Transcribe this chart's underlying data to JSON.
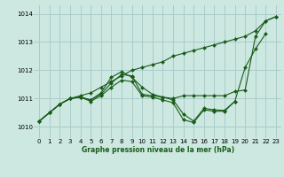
{
  "background_color": "#cce8e0",
  "grid_color": "#aacccc",
  "line_color": "#1a5c1a",
  "marker_color": "#1a5c1a",
  "title": "Graphe pression niveau de la mer (hPa)",
  "xlim": [
    -0.5,
    23.5
  ],
  "ylim": [
    1009.6,
    1014.3
  ],
  "yticks": [
    1010,
    1011,
    1012,
    1013,
    1014
  ],
  "xticks": [
    0,
    1,
    2,
    3,
    4,
    5,
    6,
    7,
    8,
    9,
    10,
    11,
    12,
    13,
    14,
    15,
    16,
    17,
    18,
    19,
    20,
    21,
    22,
    23
  ],
  "series": [
    [
      1010.2,
      1010.5,
      1010.8,
      1011.0,
      1011.1,
      1011.2,
      1011.4,
      1011.6,
      1011.8,
      1012.0,
      1012.1,
      1012.2,
      1012.3,
      1012.5,
      1012.6,
      1012.7,
      1012.8,
      1012.9,
      1013.0,
      1013.1,
      1013.2,
      1013.4,
      1013.75,
      1013.9
    ],
    [
      1010.2,
      1010.5,
      1010.8,
      1011.0,
      1011.05,
      1010.95,
      1011.2,
      1011.75,
      1011.95,
      1011.75,
      1011.4,
      1011.15,
      1011.05,
      1011.0,
      1011.1,
      1011.1,
      1011.1,
      1011.1,
      1011.1,
      1011.25,
      1011.3,
      1013.2,
      1013.75,
      1013.9
    ],
    [
      1010.2,
      1010.5,
      1010.8,
      1011.0,
      1011.05,
      1010.95,
      1011.15,
      1011.55,
      1011.85,
      1011.8,
      1011.15,
      1011.1,
      1011.05,
      1010.95,
      1010.45,
      1010.2,
      1010.65,
      1010.6,
      1010.58,
      1010.9,
      1012.1,
      1012.75,
      1013.3,
      null
    ],
    [
      1010.2,
      1010.5,
      1010.8,
      1011.0,
      1011.05,
      1010.9,
      1011.1,
      1011.4,
      1011.65,
      1011.6,
      1011.1,
      1011.05,
      1010.95,
      1010.85,
      1010.25,
      1010.15,
      1010.6,
      1010.55,
      1010.55,
      1010.9,
      null,
      null,
      null,
      null
    ]
  ]
}
